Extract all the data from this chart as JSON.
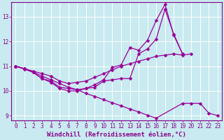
{
  "background_color": "#c8eaf0",
  "grid_color": "#ffffff",
  "line_color": "#990099",
  "marker": "D",
  "markersize": 2.5,
  "linewidth": 0.9,
  "xlabel": "Windchill (Refroidissement éolien,°C)",
  "xlabel_fontsize": 6.5,
  "tick_fontsize": 5.5,
  "tick_color": "#880088",
  "label_color": "#880088",
  "ylim": [
    8.8,
    13.6
  ],
  "xlim": [
    -0.5,
    23.5
  ],
  "yticks": [
    9,
    10,
    11,
    12,
    13
  ],
  "xticks": [
    0,
    1,
    2,
    3,
    4,
    5,
    6,
    7,
    8,
    9,
    10,
    11,
    12,
    13,
    14,
    15,
    16,
    17,
    18,
    19,
    20,
    21,
    22,
    23
  ],
  "series": [
    [
      11.0,
      10.9,
      10.8,
      10.7,
      10.6,
      10.4,
      10.3,
      10.35,
      10.4,
      10.55,
      10.7,
      10.85,
      11.0,
      11.1,
      11.2,
      11.3,
      11.4,
      11.45,
      11.5,
      11.45,
      11.5,
      null,
      null,
      null
    ],
    [
      11.0,
      10.9,
      10.75,
      10.5,
      10.4,
      10.15,
      10.1,
      10.05,
      10.1,
      10.15,
      10.4,
      10.45,
      10.5,
      10.5,
      11.5,
      11.7,
      12.1,
      13.3,
      12.3,
      11.5,
      null,
      null,
      null,
      null
    ],
    [
      11.0,
      10.9,
      10.75,
      10.5,
      10.35,
      10.1,
      10.0,
      10.0,
      10.1,
      10.25,
      10.45,
      10.95,
      11.05,
      11.75,
      11.65,
      12.05,
      12.85,
      13.5,
      12.25,
      11.5,
      null,
      null,
      null,
      null
    ],
    [
      11.0,
      10.88,
      10.76,
      10.6,
      10.45,
      10.3,
      10.15,
      10.05,
      9.9,
      9.78,
      9.65,
      9.52,
      9.4,
      9.27,
      9.15,
      9.02,
      8.9,
      null,
      null,
      9.5,
      9.5,
      9.5,
      9.1,
      9.0
    ]
  ]
}
